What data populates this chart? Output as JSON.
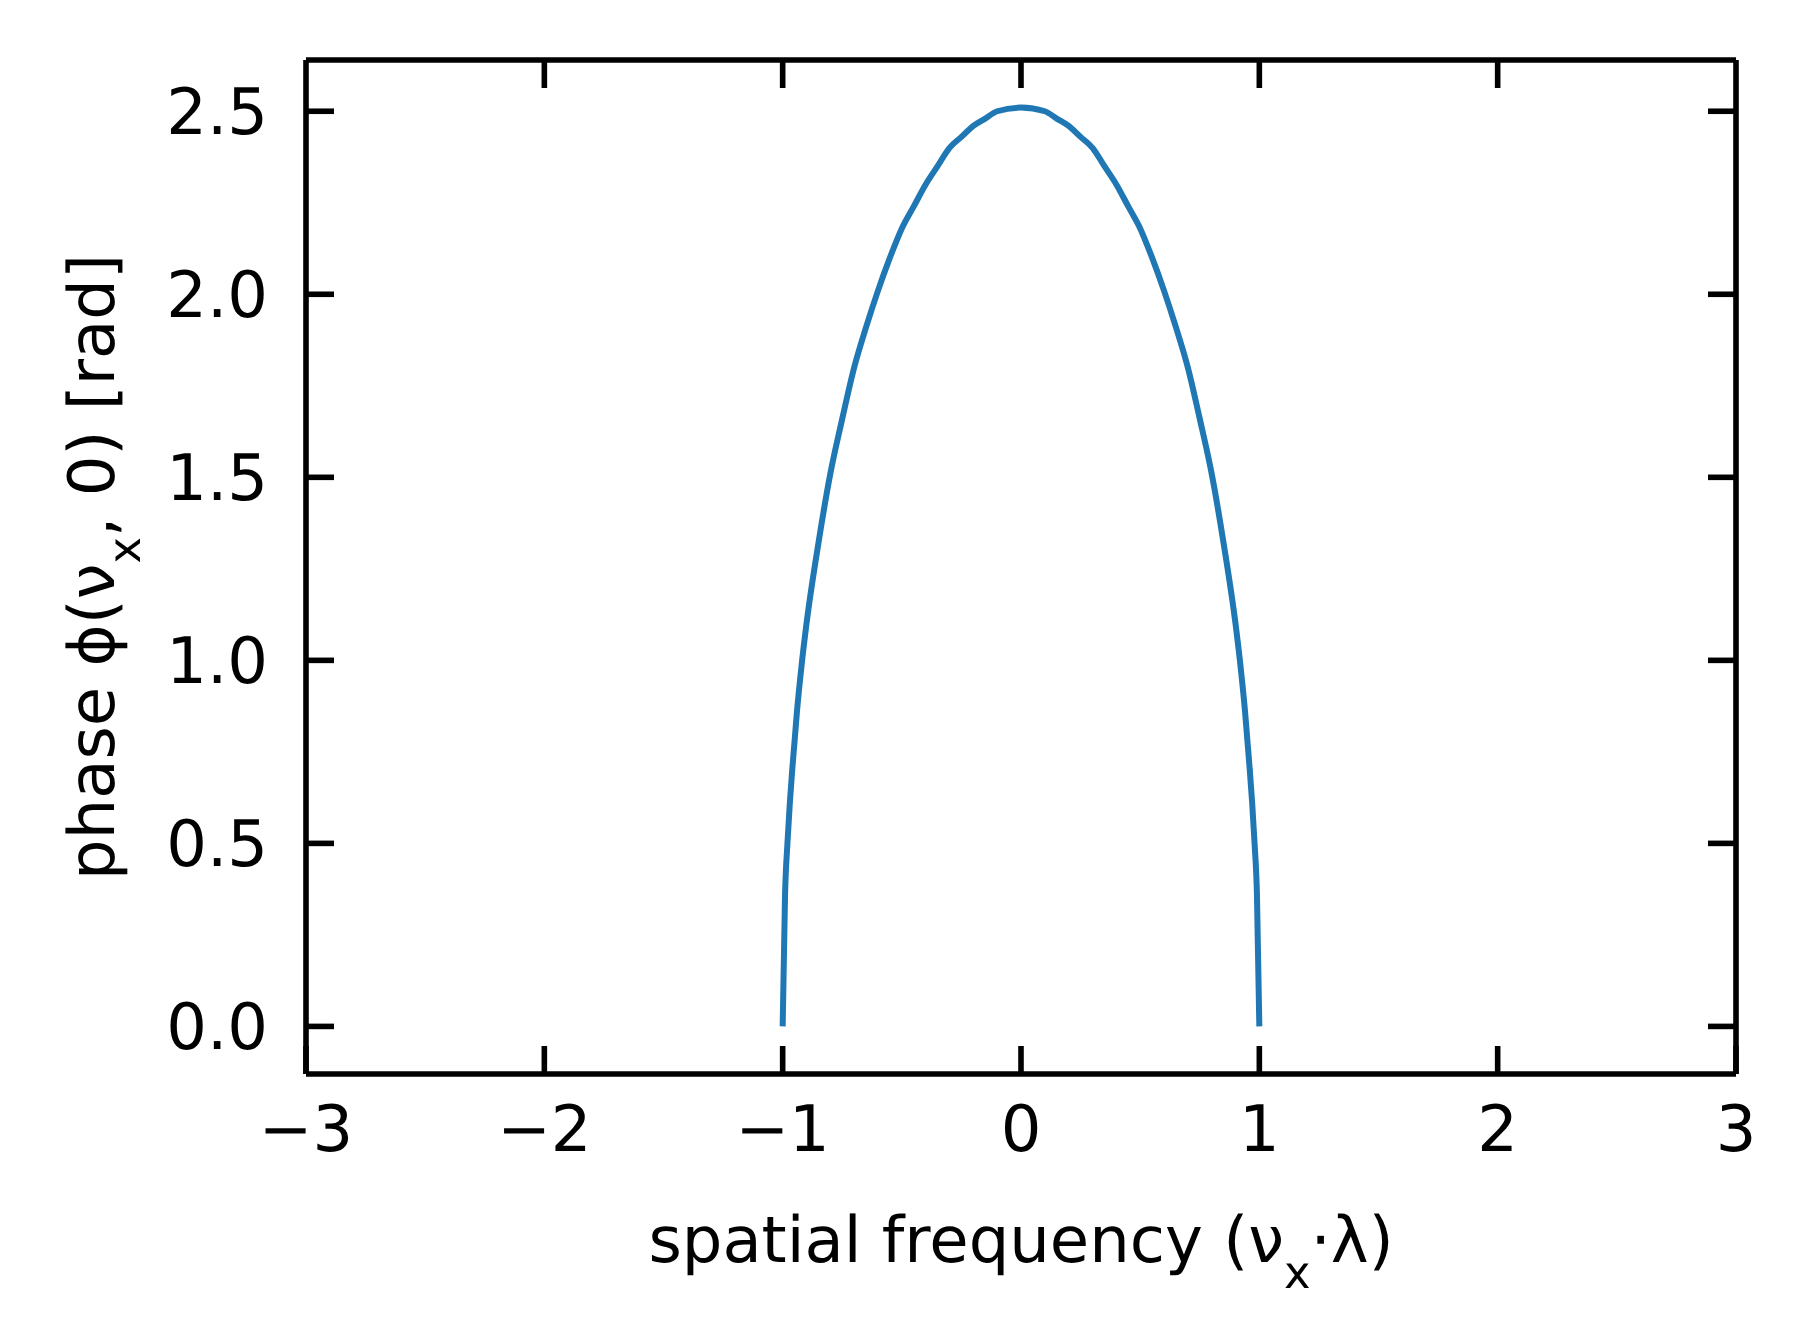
{
  "chart_data": {
    "type": "line",
    "xlabel": "spatial frequency (ν$_{x}$·λ)",
    "ylabel": "phase ϕ(ν$_{x}$, 0) [rad]",
    "x": [
      -1,
      -0.99,
      -0.98,
      -0.97,
      -0.96,
      -0.95,
      -0.94,
      -0.92,
      -0.9,
      -0.85,
      -0.8,
      -0.75,
      -0.7,
      -0.65,
      -0.6,
      -0.55,
      -0.5,
      -0.45,
      -0.4,
      -0.35,
      -0.3,
      -0.25,
      -0.2,
      -0.15,
      -0.1,
      0,
      0.1,
      0.15,
      0.2,
      0.25,
      0.3,
      0.35,
      0.4,
      0.45,
      0.5,
      0.55,
      0.6,
      0.65,
      0.7,
      0.75,
      0.8,
      0.85,
      0.9,
      0.92,
      0.94,
      0.95,
      0.96,
      0.97,
      0.98,
      0.99,
      1
    ],
    "series": [
      {
        "color": "#1f77b4",
        "values": [
          0,
          0.36,
          0.5,
          0.61,
          0.7,
          0.78,
          0.86,
          0.99,
          1.1,
          1.32,
          1.51,
          1.66,
          1.8,
          1.91,
          2.01,
          2.1,
          2.18,
          2.24,
          2.3,
          2.35,
          2.4,
          2.43,
          2.46,
          2.48,
          2.5,
          2.51,
          2.5,
          2.48,
          2.46,
          2.43,
          2.4,
          2.35,
          2.3,
          2.24,
          2.18,
          2.1,
          2.01,
          1.91,
          1.8,
          1.66,
          1.51,
          1.32,
          1.1,
          0.99,
          0.86,
          0.78,
          0.7,
          0.61,
          0.5,
          0.36,
          0
        ]
      }
    ],
    "xlim": [
      -3,
      3
    ],
    "xticks": [
      {
        "value": -3,
        "label": "−3"
      },
      {
        "value": -2,
        "label": "−2"
      },
      {
        "value": -1,
        "label": "−1"
      },
      0,
      1,
      2,
      3
    ],
    "ylim": [
      -0.13,
      2.64
    ],
    "yticks": [
      {
        "value": 0,
        "label": "0.0"
      },
      {
        "value": 0.5,
        "label": "0.5"
      },
      {
        "value": 1,
        "label": "1.0"
      },
      {
        "value": 1.5,
        "label": "1.5"
      },
      {
        "value": 2,
        "label": "2.0"
      },
      {
        "value": 2.5,
        "label": "2.5"
      }
    ],
    "line_style": "solid"
  }
}
